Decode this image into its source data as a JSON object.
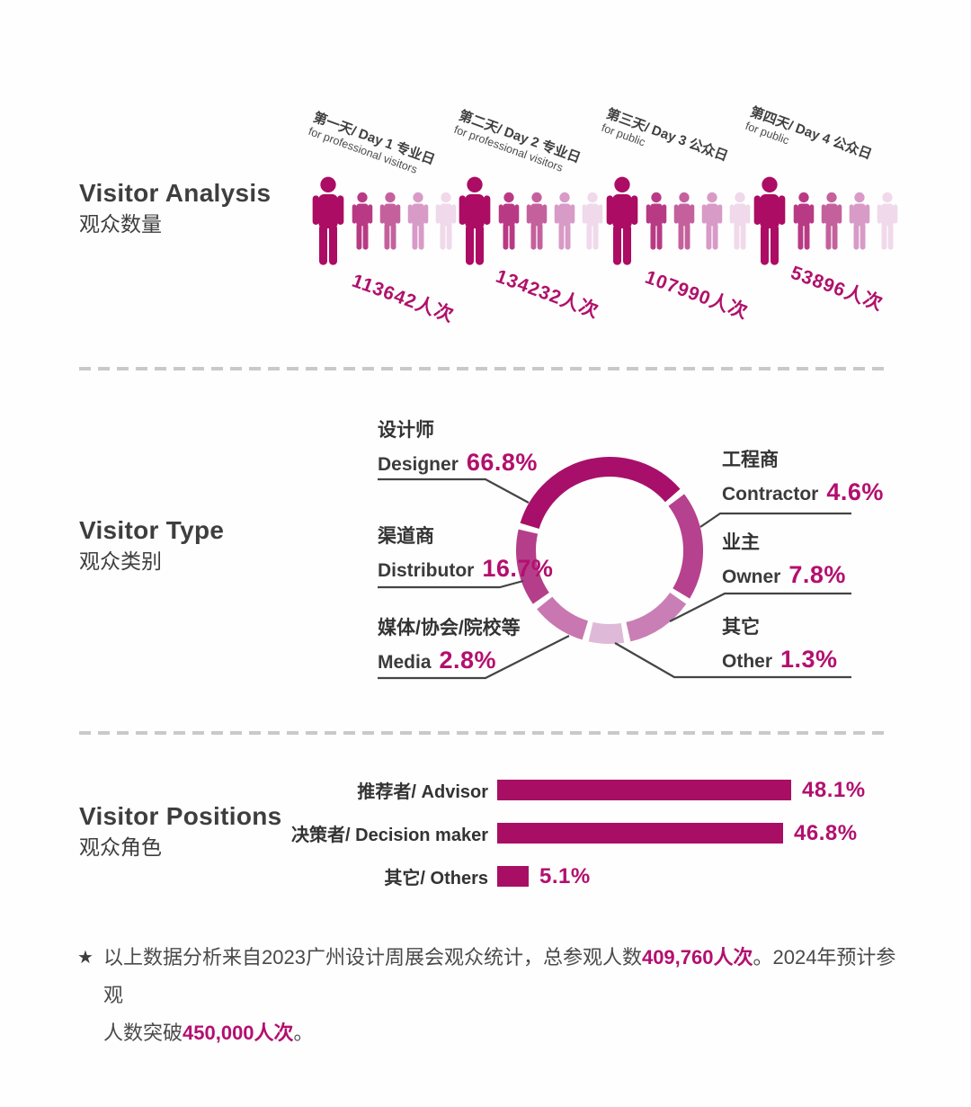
{
  "colors": {
    "magenta_dark": "#a80f6a",
    "magenta_text": "#b30f6f",
    "bar": "#a80f64",
    "heading": "#3e3e3e",
    "leader_line": "#444444",
    "divider": "#c9c9c9"
  },
  "visitor_analysis": {
    "title_en": "Visitor Analysis",
    "title_zh": "观众数量",
    "person_colors": [
      "#ac0c63",
      "#b93a84",
      "#c4619d",
      "#d89ac6",
      "#efd9ea"
    ],
    "days": [
      {
        "label_zh": "第一天/ Day 1 专业日",
        "label_en": "for professional visitors",
        "count": "113642人次"
      },
      {
        "label_zh": "第二天/ Day 2 专业日",
        "label_en": "for professional visitors",
        "count": "134232人次"
      },
      {
        "label_zh": "第三天/ Day 3 公众日",
        "label_en": "for public",
        "count": "107990人次"
      },
      {
        "label_zh": "第四天/ Day 4 公众日",
        "label_en": "for public",
        "count": "53896人次"
      }
    ]
  },
  "visitor_type": {
    "title_en": "Visitor Type",
    "title_zh": "观众类别",
    "segments": [
      {
        "zh": "设计师",
        "en": "Designer",
        "value": "66.8%",
        "pct": 66.8,
        "color": "#a80f6a"
      },
      {
        "zh": "渠道商",
        "en": "Distributor",
        "value": "16.7%",
        "pct": 16.7,
        "color": "#b43e8a"
      },
      {
        "zh": "媒体/协会/院校等",
        "en": "Media",
        "value": "2.8%",
        "pct": 2.8,
        "color": "#c977b0"
      },
      {
        "zh": "工程商",
        "en": "Contractor",
        "value": "4.6%",
        "pct": 4.6,
        "color": "#b6418e"
      },
      {
        "zh": "业主",
        "en": "Owner",
        "value": "7.8%",
        "pct": 7.8,
        "color": "#c97fb5"
      },
      {
        "zh": "其它",
        "en": "Other",
        "value": "1.3%",
        "pct": 1.3,
        "color": "#dfb9d8"
      }
    ]
  },
  "visitor_positions": {
    "title_en": "Visitor Positions",
    "title_zh": "观众角色",
    "bars": [
      {
        "label": "推荐者/ Advisor",
        "value": 48.1,
        "display": "48.1%"
      },
      {
        "label": "决策者/ Decision maker",
        "value": 46.8,
        "display": "46.8%"
      },
      {
        "label": "其它/ Others",
        "value": 5.1,
        "display": "5.1%"
      }
    ]
  },
  "footnote": {
    "star": "★",
    "line1_pre": "以上数据分析来自2023广州设计周展会观众统计，总参观人数",
    "line1_highlight": "409,760人次",
    "line1_post": "。2024年预计参观",
    "line2_pre": "人数突破",
    "line2_highlight": "450,000人次",
    "line2_post": "。"
  },
  "chart_data": [
    {
      "type": "bar",
      "style": "pictogram",
      "title": "Visitor Analysis 观众数量",
      "categories": [
        "第一天/ Day 1 专业日 for professional visitors",
        "第二天/ Day 2 专业日 for professional visitors",
        "第三天/ Day 3 公众日 for public",
        "第四天/ Day 4 公众日 for public"
      ],
      "values": [
        113642,
        134232,
        107990,
        53896
      ],
      "unit": "人次"
    },
    {
      "type": "pie",
      "style": "donut",
      "title": "Visitor Type 观众类别",
      "labels": [
        "设计师 Designer",
        "渠道商 Distributor",
        "媒体/协会/院校等 Media",
        "工程商 Contractor",
        "业主 Owner",
        "其它 Other"
      ],
      "values": [
        66.8,
        16.7,
        2.8,
        4.6,
        7.8,
        1.3
      ],
      "unit": "%"
    },
    {
      "type": "bar",
      "orientation": "horizontal",
      "title": "Visitor Positions 观众角色",
      "categories": [
        "推荐者/ Advisor",
        "决策者/ Decision maker",
        "其它/ Others"
      ],
      "values": [
        48.1,
        46.8,
        5.1
      ],
      "unit": "%",
      "xlim": [
        0,
        50
      ]
    }
  ]
}
